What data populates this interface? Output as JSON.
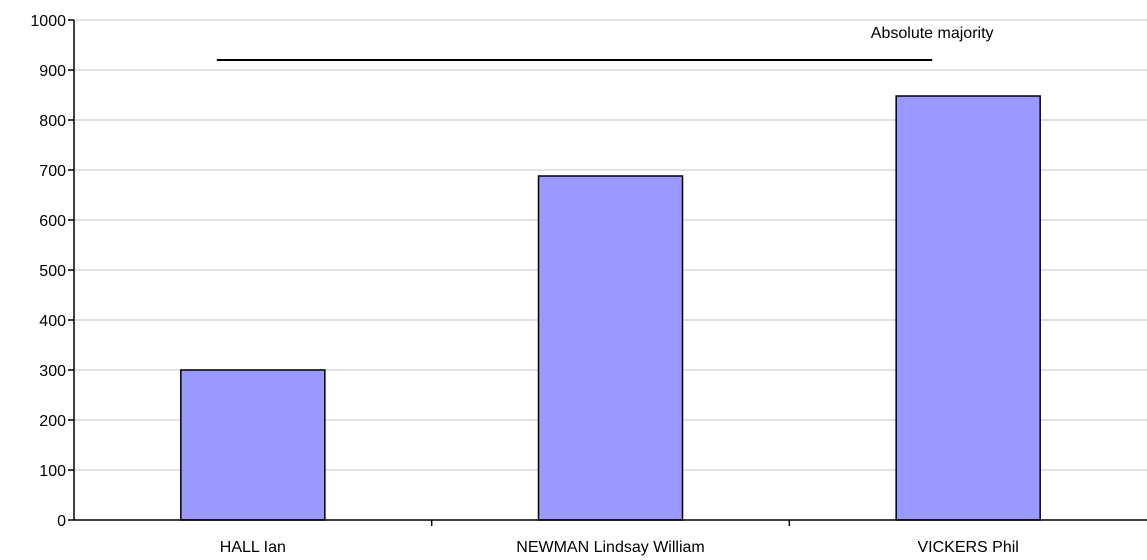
{
  "chart_data": {
    "type": "bar",
    "categories": [
      "HALL Ian",
      "NEWMAN Lindsay William",
      "VICKERS Phil"
    ],
    "values": [
      300,
      688,
      848
    ],
    "ylim": [
      0,
      1000
    ],
    "yticks": [
      0,
      100,
      200,
      300,
      400,
      500,
      600,
      700,
      800,
      900,
      1000
    ],
    "grid": true,
    "bar_color": "#9999ff",
    "bar_edge_color": "#000000",
    "reference_line": {
      "label": "Absolute majority",
      "value": 920
    }
  }
}
